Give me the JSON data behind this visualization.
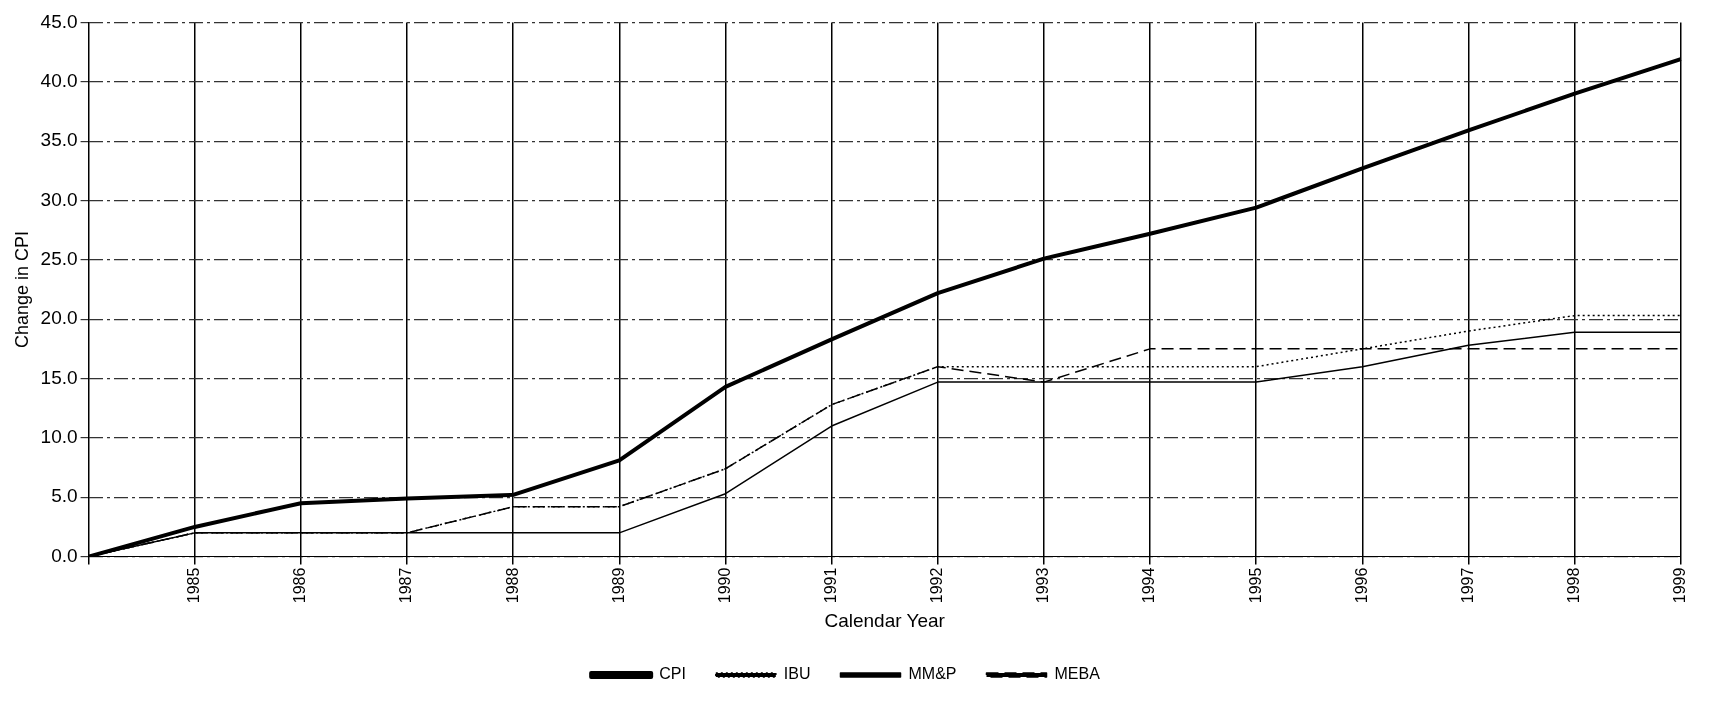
{
  "chart_data": {
    "type": "line",
    "xlabel": "Calendar Year",
    "ylabel": "Change in CPI",
    "categories": [
      null,
      "1985",
      "1986",
      "1987",
      "1988",
      "1989",
      "1990",
      "1991",
      "1992",
      "1993",
      "1994",
      "1995",
      "1996",
      "1997",
      "1998",
      "1999"
    ],
    "series": [
      {
        "name": "CPI",
        "color": "#000000",
        "line_style": "solid",
        "values": [
          0,
          2.5,
          4.5,
          4.9,
          5.2,
          8.1,
          14.3,
          18.3,
          22.2,
          25.1,
          27.2,
          29.4,
          32.7,
          35.9,
          39,
          41.9
        ]
      },
      {
        "name": "IBU",
        "color": "#000000",
        "line_style": "dotted",
        "values": [
          0,
          2,
          2,
          2,
          4.2,
          4.2,
          7.4,
          12.8,
          16,
          16,
          16,
          16,
          17.5,
          19,
          20.3,
          20.3
        ]
      },
      {
        "name": "MM&P",
        "color": "#000000",
        "line_style": "solid",
        "values": [
          0,
          2,
          2,
          2,
          2,
          2,
          5.3,
          11,
          14.7,
          14.7,
          14.7,
          14.7,
          16,
          17.8,
          18.9,
          18.9
        ]
      },
      {
        "name": "MEBA",
        "color": "#000000",
        "line_style": "dashed",
        "values": [
          0,
          2,
          2,
          2,
          4.2,
          4.2,
          7.4,
          12.8,
          16,
          14.7,
          17.5,
          17.5,
          17.5,
          17.5,
          17.5,
          17.5
        ]
      }
    ],
    "ylim": [
      0,
      45
    ],
    "yticks": [
      {
        "value": 0,
        "label": "0.0"
      },
      {
        "value": 5,
        "label": "5.0"
      },
      {
        "value": 10,
        "label": "10.0"
      },
      {
        "value": 15,
        "label": "15.0"
      },
      {
        "value": 20,
        "label": "20.0"
      },
      {
        "value": 25,
        "label": "25.0"
      },
      {
        "value": 30,
        "label": "30.0"
      },
      {
        "value": 35,
        "label": "35.0"
      },
      {
        "value": 40,
        "label": "40.0"
      },
      {
        "value": 45,
        "label": "45.0"
      }
    ],
    "grid": true,
    "legend": "bottom",
    "marker": "none"
  }
}
